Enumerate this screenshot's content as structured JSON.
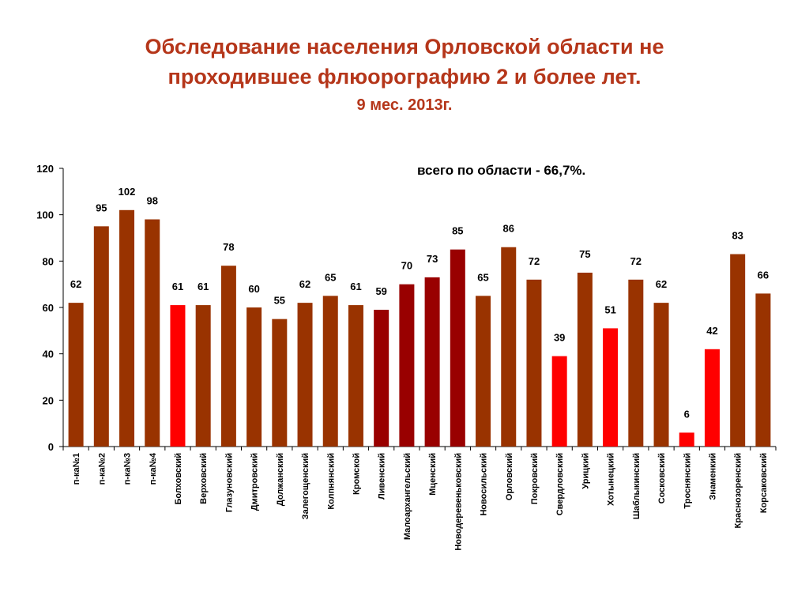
{
  "slide": {
    "title_line1": "Обследование населения Орловской области не",
    "title_line2": "проходившее флюорографию 2 и более лет.",
    "subtitle": "9 мес. 2013г."
  },
  "colors": {
    "title": "#b5361a",
    "bar_default": "#993300",
    "bar_red": "#ff0000",
    "bar_darkred": "#990000"
  },
  "chart_data": {
    "type": "bar",
    "title": "",
    "xlabel": "",
    "ylabel": "",
    "ylim": [
      0,
      120
    ],
    "yticks": [
      0,
      20,
      40,
      60,
      80,
      100,
      120
    ],
    "grid": false,
    "annotation": "всего по области - 66,7%.",
    "categories": [
      "п-ка№1",
      "п-ка№2",
      "п-ка№3",
      "п-ка№4",
      "Болховский",
      "Верховский",
      "Глазуновский",
      "Дмитровский",
      "Должанский",
      "Залегощенский",
      "Колпнянский",
      "Кромской",
      "Ливенский",
      "Малоархангельский",
      "Мценский",
      "Новодеревеньковский",
      "Новосильский",
      "Орловский",
      "Покровский",
      "Свердловский",
      "Урицкий",
      "Хотынецкий",
      "Шаблыкинский",
      "Сосковский",
      "Троснянский",
      "Знаменкий",
      "Краснозоренский",
      "Корсаковский"
    ],
    "values": [
      62,
      95,
      102,
      98,
      61,
      61,
      78,
      60,
      55,
      62,
      65,
      61,
      59,
      70,
      73,
      85,
      65,
      86,
      72,
      39,
      75,
      51,
      72,
      62,
      6,
      42,
      83,
      66
    ],
    "bar_colors": [
      "default",
      "default",
      "default",
      "default",
      "red",
      "default",
      "default",
      "default",
      "default",
      "default",
      "default",
      "default",
      "darkred",
      "darkred",
      "darkred",
      "darkred",
      "default",
      "default",
      "default",
      "red",
      "default",
      "red",
      "default",
      "default",
      "red",
      "red",
      "default",
      "default"
    ]
  }
}
